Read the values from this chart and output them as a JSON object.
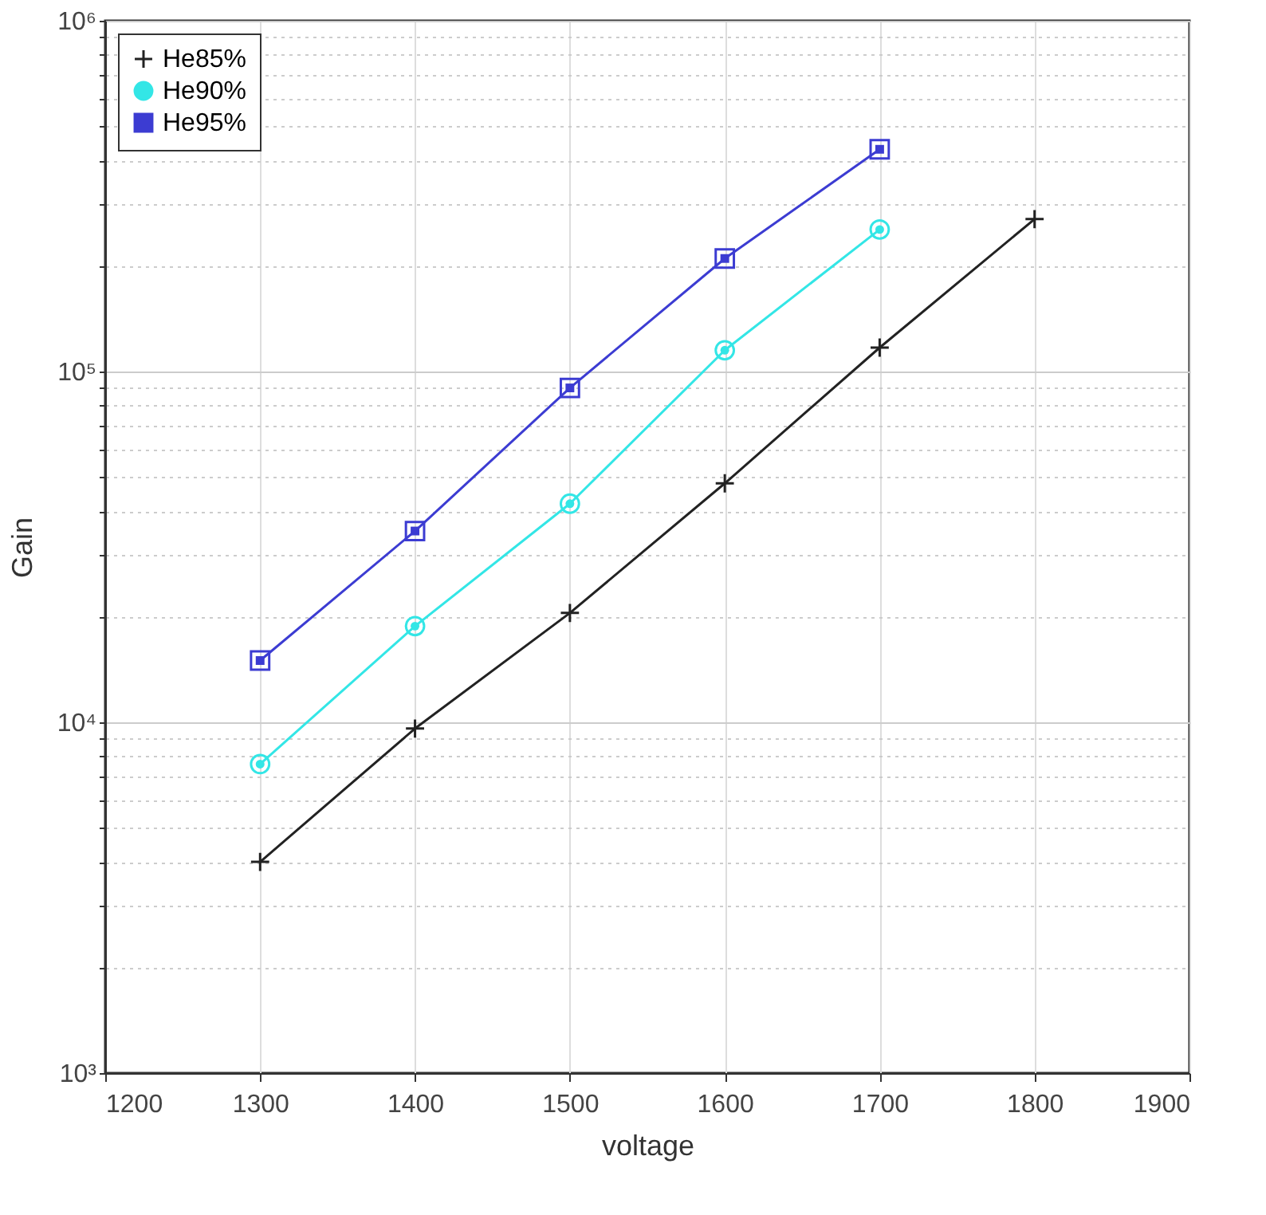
{
  "chart_data": {
    "type": "line",
    "xlabel": "voltage",
    "ylabel": "Gain",
    "log": "y",
    "grid": true,
    "legend": "top left",
    "line_style": "solid",
    "xlim": [
      1200,
      1900
    ],
    "xticks": [
      1200,
      1300,
      1400,
      1500,
      1600,
      1700,
      1800,
      1900
    ],
    "ylim": [
      1000,
      1000000
    ],
    "yticks": [
      {
        "value": 1000,
        "label": "10³"
      },
      {
        "value": 2000,
        "label": null
      },
      {
        "value": 3000,
        "label": null
      },
      {
        "value": 4000,
        "label": null
      },
      {
        "value": 5000,
        "label": null
      },
      {
        "value": 6000,
        "label": null
      },
      {
        "value": 7000,
        "label": null
      },
      {
        "value": 8000,
        "label": null
      },
      {
        "value": 9000,
        "label": null
      },
      {
        "value": 10000,
        "label": "10⁴"
      },
      {
        "value": 20000,
        "label": null
      },
      {
        "value": 30000,
        "label": null
      },
      {
        "value": 40000,
        "label": null
      },
      {
        "value": 50000,
        "label": null
      },
      {
        "value": 60000,
        "label": null
      },
      {
        "value": 70000,
        "label": null
      },
      {
        "value": 80000,
        "label": null
      },
      {
        "value": 90000,
        "label": null
      },
      {
        "value": 100000,
        "label": "10⁵"
      },
      {
        "value": 200000,
        "label": null
      },
      {
        "value": 300000,
        "label": null
      },
      {
        "value": 400000,
        "label": null
      },
      {
        "value": 500000,
        "label": null
      },
      {
        "value": 600000,
        "label": null
      },
      {
        "value": 700000,
        "label": null
      },
      {
        "value": 800000,
        "label": null
      },
      {
        "value": 900000,
        "label": null
      },
      {
        "value": 1000000,
        "label": "10⁶"
      }
    ],
    "series": [
      {
        "name": "He85%",
        "color": "#222222",
        "marker": "cross",
        "x": [
          1300,
          1400,
          1500,
          1600,
          1700,
          1800
        ],
        "values": [
          4000,
          9600,
          20500,
          48000,
          117000,
          272000
        ]
      },
      {
        "name": "He90%",
        "color": "#33e6e6",
        "marker": "circle",
        "x": [
          1300,
          1400,
          1500,
          1600,
          1700
        ],
        "values": [
          7600,
          18800,
          42000,
          115000,
          254000
        ]
      },
      {
        "name": "He95%",
        "color": "#3c3cd2",
        "marker": "square",
        "x": [
          1300,
          1400,
          1500,
          1600,
          1700
        ],
        "values": [
          15000,
          35100,
          89800,
          210000,
          430000
        ]
      }
    ]
  }
}
